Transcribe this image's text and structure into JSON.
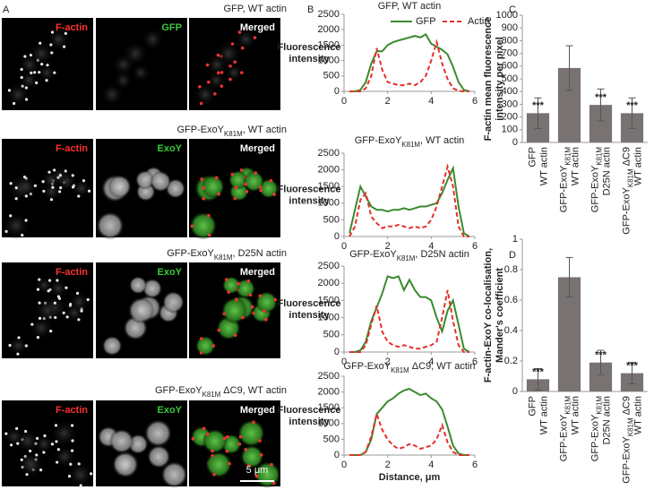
{
  "panel_a": {
    "label": "A",
    "rows": [
      {
        "title": [
          "GFP, WT actin"
        ],
        "channels": [
          "F-actin",
          "GFP",
          "Merged"
        ]
      },
      {
        "title": [
          "GFP-ExoY",
          {
            "sub": "K81M"
          },
          ", WT actin"
        ],
        "channels": [
          "F-actin",
          "ExoY",
          "Merged"
        ]
      },
      {
        "title": [
          "GFP-ExoY",
          {
            "sub": "K81M"
          },
          ", D25N actin"
        ],
        "channels": [
          "F-actin",
          "ExoY",
          "Merged"
        ]
      },
      {
        "title": [
          "GFP-ExoY",
          {
            "sub": "K81M"
          },
          " ΔC9, WT actin"
        ],
        "channels": [
          "F-actin",
          "ExoY",
          "Merged"
        ]
      }
    ],
    "scale_bar": "5 μm"
  },
  "chart_data": [
    {
      "type": "line",
      "panel_label": "B",
      "title": [
        "GFP, WT actin"
      ],
      "ylabel": [
        "Fluorescence",
        "intensity"
      ],
      "x": [
        0.25,
        0.5,
        0.75,
        1,
        1.25,
        1.5,
        1.75,
        2,
        2.25,
        2.5,
        2.75,
        3,
        3.25,
        3.5,
        3.75,
        4,
        4.25,
        4.5,
        4.75,
        5,
        5.25,
        5.5,
        5.75
      ],
      "series": [
        {
          "name": "GFP",
          "color": "#3b8a2f",
          "dash": false,
          "values": [
            0,
            0,
            50,
            300,
            900,
            1300,
            1300,
            1500,
            1600,
            1650,
            1700,
            1750,
            1800,
            1750,
            1850,
            1550,
            1450,
            1350,
            1200,
            800,
            300,
            50,
            0
          ]
        },
        {
          "name": "Actin",
          "color": "#e5302a",
          "dash": true,
          "values": [
            0,
            0,
            0,
            100,
            500,
            1400,
            700,
            300,
            250,
            200,
            200,
            250,
            200,
            300,
            500,
            1000,
            1600,
            900,
            400,
            100,
            20,
            0,
            0
          ]
        }
      ],
      "legend": "top",
      "xlim": [
        0,
        6
      ],
      "xticks": [
        0,
        2,
        4,
        6
      ],
      "ylim": [
        0,
        2500
      ],
      "yticks": [
        0,
        500,
        1000,
        1500,
        2000,
        2500
      ]
    },
    {
      "type": "line",
      "title": [
        "GFP-ExoY",
        {
          "sub": "K81M"
        },
        ", WT actin"
      ],
      "ylabel": [
        "Fluorescence",
        "intensity"
      ],
      "x": [
        0.25,
        0.5,
        0.75,
        1,
        1.25,
        1.5,
        1.75,
        2,
        2.25,
        2.5,
        2.75,
        3,
        3.25,
        3.5,
        3.75,
        4,
        4.25,
        4.5,
        4.75,
        5,
        5.25,
        5.5,
        5.75
      ],
      "series": [
        {
          "color": "#3b8a2f",
          "dash": false,
          "values": [
            100,
            800,
            1500,
            1200,
            900,
            800,
            800,
            750,
            800,
            800,
            850,
            800,
            850,
            900,
            900,
            950,
            1000,
            1300,
            1700,
            2050,
            900,
            100,
            0
          ]
        },
        {
          "color": "#e5302a",
          "dash": true,
          "values": [
            0,
            300,
            1100,
            1300,
            600,
            400,
            250,
            300,
            300,
            350,
            300,
            250,
            300,
            250,
            300,
            500,
            900,
            1500,
            2100,
            1500,
            300,
            0,
            0
          ]
        }
      ],
      "xlim": [
        0,
        6
      ],
      "xticks": [
        0,
        2,
        4,
        6
      ],
      "ylim": [
        0,
        2500
      ],
      "yticks": [
        0,
        500,
        1000,
        1500,
        2000,
        2500
      ]
    },
    {
      "type": "line",
      "title": [
        "GFP-ExoY",
        {
          "sub": "K81M"
        },
        ", D25N actin"
      ],
      "ylabel": [
        "Fluorescence",
        "intensity"
      ],
      "x": [
        0.25,
        0.5,
        0.75,
        1,
        1.25,
        1.5,
        1.75,
        2,
        2.25,
        2.5,
        2.75,
        3,
        3.25,
        3.5,
        3.75,
        4,
        4.25,
        4.5,
        4.75,
        5,
        5.25,
        5.5,
        5.75
      ],
      "series": [
        {
          "color": "#3b8a2f",
          "dash": false,
          "values": [
            0,
            0,
            50,
            300,
            900,
            1300,
            1700,
            2200,
            2150,
            2200,
            1800,
            2100,
            1800,
            1600,
            1600,
            1500,
            1000,
            600,
            1200,
            1500,
            800,
            100,
            0
          ]
        },
        {
          "color": "#e5302a",
          "dash": true,
          "values": [
            0,
            0,
            0,
            200,
            800,
            1350,
            600,
            300,
            200,
            150,
            200,
            150,
            100,
            100,
            150,
            200,
            300,
            1000,
            1800,
            900,
            200,
            0,
            0
          ]
        }
      ],
      "xlim": [
        0,
        6
      ],
      "xticks": [
        0,
        2,
        4,
        6
      ],
      "ylim": [
        0,
        2500
      ],
      "yticks": [
        0,
        500,
        1000,
        1500,
        2000,
        2500
      ]
    },
    {
      "type": "line",
      "title": [
        "GFP-ExoY",
        {
          "sub": "K81M"
        },
        " ΔC9, WT actin"
      ],
      "ylabel": [
        "Fluorescence",
        "intensity"
      ],
      "xlabel": "Distance, μm",
      "x": [
        0.25,
        0.5,
        0.75,
        1,
        1.25,
        1.5,
        1.75,
        2,
        2.25,
        2.5,
        2.75,
        3,
        3.25,
        3.5,
        3.75,
        4,
        4.25,
        4.5,
        4.75,
        5,
        5.25,
        5.5,
        5.75
      ],
      "series": [
        {
          "color": "#3b8a2f",
          "dash": false,
          "values": [
            0,
            0,
            0,
            100,
            500,
            1300,
            1500,
            1700,
            1800,
            1950,
            2050,
            2100,
            2000,
            1900,
            1950,
            1800,
            1700,
            1450,
            900,
            300,
            50,
            0,
            0
          ]
        },
        {
          "color": "#e5302a",
          "dash": true,
          "values": [
            0,
            0,
            0,
            100,
            600,
            1300,
            800,
            500,
            300,
            200,
            250,
            350,
            300,
            200,
            250,
            300,
            500,
            950,
            400,
            100,
            0,
            0,
            0
          ]
        }
      ],
      "xlim": [
        0,
        6
      ],
      "xticks": [
        0,
        2,
        4,
        6
      ],
      "ylim": [
        0,
        2500
      ],
      "yticks": [
        0,
        500,
        1000,
        1500,
        2000,
        2500
      ]
    },
    {
      "type": "bar",
      "panel_label": "C",
      "ylabel": [
        "F-actin mean fluorescence",
        "intensity per pixel"
      ],
      "categories": [
        [
          [
            "GFP"
          ],
          [
            "WT actin"
          ]
        ],
        [
          [
            "GFP-ExoY",
            {
              "sub": "K81M"
            }
          ],
          [
            "WT actin"
          ]
        ],
        [
          [
            "GFP-ExoY",
            {
              "sub": "K81M"
            }
          ],
          [
            "D25N actin"
          ]
        ],
        [
          [
            "GFP-ExoY",
            {
              "sub": "K81M"
            },
            " ΔC9"
          ],
          [
            "WT actin"
          ]
        ]
      ],
      "values": [
        230,
        585,
        295,
        230
      ],
      "errors": [
        120,
        175,
        125,
        120
      ],
      "significance": [
        "***",
        null,
        "***",
        "***"
      ],
      "color": "#797272",
      "ylim": [
        0,
        1000
      ],
      "yticks": [
        0,
        100,
        200,
        300,
        400,
        500,
        600,
        700,
        800,
        900,
        1000
      ]
    },
    {
      "type": "bar",
      "panel_label": "D",
      "ylabel": [
        "F-actin-ExoY co-localisation,",
        "Mander's coefficient"
      ],
      "categories": [
        [
          [
            "GFP"
          ],
          [
            "WT actin"
          ]
        ],
        [
          [
            "GFP-ExoY",
            {
              "sub": "K81M"
            }
          ],
          [
            "WT actin"
          ]
        ],
        [
          [
            "GFP-ExoY",
            {
              "sub": "K81M"
            }
          ],
          [
            "D25N actin"
          ]
        ],
        [
          [
            "GFP-ExoY",
            {
              "sub": "K81M"
            },
            " ΔC9"
          ],
          [
            "WT actin"
          ]
        ]
      ],
      "values": [
        0.08,
        0.75,
        0.19,
        0.12
      ],
      "errors": [
        0.07,
        0.13,
        0.08,
        0.07
      ],
      "significance": [
        "***",
        null,
        "***",
        "***"
      ],
      "color": "#797272",
      "ylim": [
        0,
        1
      ],
      "yticks": [
        0,
        0.2,
        0.4,
        0.6,
        0.8,
        1
      ]
    }
  ]
}
